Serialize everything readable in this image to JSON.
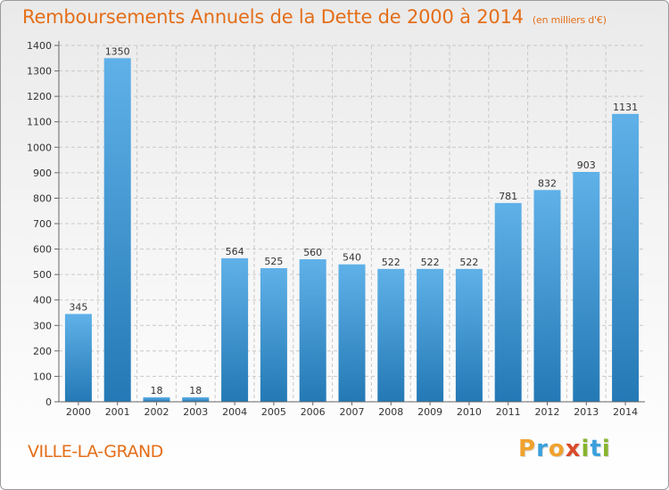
{
  "header": {
    "title": "Remboursements Annuels de la Dette de 2000 à 2014",
    "unit": "(en milliers d'€)"
  },
  "footer": {
    "commune": "VILLE-LA-GRAND",
    "logo": [
      "P",
      "r",
      "o",
      "x",
      "i",
      "t",
      "i"
    ]
  },
  "colors": {
    "accent": "#e46e19",
    "bar_top": "#5fb1e8",
    "bar_bottom": "#2479b5",
    "logo_orange": "#f0a22e",
    "logo_blue": "#3aa0dc",
    "logo_red": "#d94b2b",
    "logo_green": "#87b52d"
  },
  "chart_data": {
    "type": "bar",
    "title": "Remboursements Annuels de la Dette de 2000 à 2014",
    "xlabel": "",
    "ylabel": "",
    "categories": [
      "2000",
      "2001",
      "2002",
      "2003",
      "2004",
      "2005",
      "2006",
      "2007",
      "2008",
      "2009",
      "2010",
      "2011",
      "2012",
      "2013",
      "2014"
    ],
    "values": [
      345,
      1350,
      18,
      18,
      564,
      525,
      560,
      540,
      522,
      522,
      522,
      781,
      832,
      903,
      1131
    ],
    "ylim": [
      0,
      1400
    ],
    "yticks": [
      0,
      100,
      200,
      300,
      400,
      500,
      600,
      700,
      800,
      900,
      1000,
      1100,
      1200,
      1300,
      1400
    ],
    "grid": true,
    "legend": "none"
  }
}
